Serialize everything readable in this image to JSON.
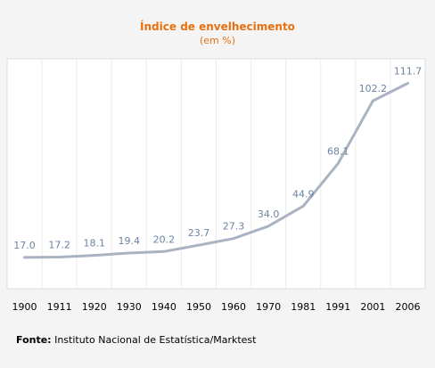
{
  "chart_data": {
    "type": "line",
    "title": "Índice de envelhecimento",
    "subtitle": "(em %)",
    "categories": [
      "1900",
      "1911",
      "1920",
      "1930",
      "1940",
      "1950",
      "1960",
      "1970",
      "1981",
      "1991",
      "2001",
      "2006"
    ],
    "series": [
      {
        "values": [
          17.0,
          17.2,
          18.1,
          19.4,
          20.2,
          23.7,
          27.3,
          34.0,
          44.9,
          68.1,
          102.2,
          111.7
        ],
        "labels": [
          "17.0",
          "17.2",
          "18.1",
          "19.4",
          "20.2",
          "23.7",
          "27.3",
          "34.0",
          "44.9",
          "68.1",
          "102.2",
          "111.7"
        ]
      }
    ],
    "ylim": [
      0,
      125
    ],
    "grid": "vertical",
    "line_color": "#a9b3c1",
    "label_color": "#6d83a3"
  },
  "source": {
    "label": "Fonte:",
    "text": "Instituto Nacional de Estatística/Marktest"
  }
}
